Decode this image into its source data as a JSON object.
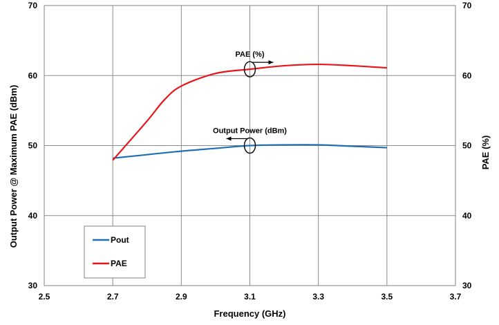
{
  "chart_data": {
    "type": "line",
    "title": "",
    "xlabel": "Frequency (GHz)",
    "ylabel_left": "Output Power @ Maximum PAE (dBm)",
    "ylabel_right": "PAE (%)",
    "xlim": [
      2.5,
      3.7
    ],
    "ylim_left": [
      30,
      70
    ],
    "ylim_right": [
      30,
      70
    ],
    "x_ticks": [
      "2.5",
      "2.7",
      "2.9",
      "3.1",
      "3.3",
      "3.5",
      "3.7"
    ],
    "y_ticks_left": [
      "30",
      "40",
      "50",
      "60",
      "70"
    ],
    "y_ticks_right": [
      "30",
      "40",
      "50",
      "60",
      "70"
    ],
    "grid": true,
    "legend_position": "bottom-left",
    "series": [
      {
        "name": "Pout",
        "axis": "left",
        "color": "#1f6fb5",
        "x": [
          2.7,
          2.8,
          2.9,
          3.0,
          3.1,
          3.2,
          3.3,
          3.4,
          3.5
        ],
        "values": [
          48.2,
          48.7,
          49.2,
          49.6,
          50.0,
          50.1,
          50.1,
          49.9,
          49.7
        ]
      },
      {
        "name": "PAE",
        "axis": "right",
        "color": "#e8141a",
        "x": [
          2.7,
          2.8,
          2.85,
          2.9,
          3.0,
          3.1,
          3.2,
          3.3,
          3.4,
          3.5
        ],
        "values": [
          47.9,
          53.5,
          56.5,
          58.5,
          60.3,
          60.9,
          61.4,
          61.6,
          61.4,
          61.1
        ]
      }
    ],
    "annotations": [
      {
        "text": "PAE (%)",
        "points_to": "right",
        "x": 3.1,
        "y": 60.9
      },
      {
        "text": "Output Power (dBm)",
        "points_to": "left",
        "x": 3.1,
        "y": 50.0
      }
    ]
  }
}
